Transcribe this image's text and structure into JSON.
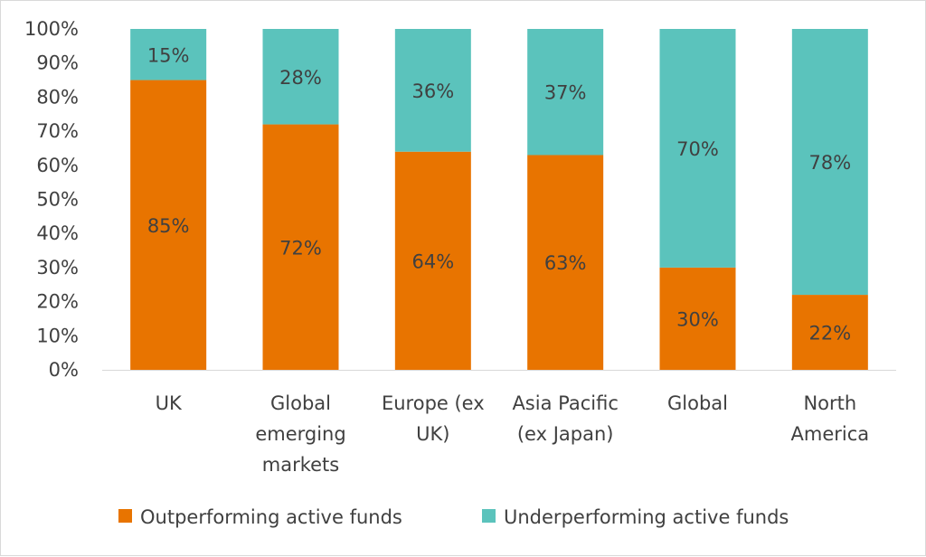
{
  "chart_data": {
    "type": "bar",
    "stacked": true,
    "categories": [
      "UK",
      "Global emerging markets",
      "Europe (ex UK)",
      "Asia Pacific (ex Japan)",
      "Global",
      "North America"
    ],
    "category_lines": [
      [
        "UK"
      ],
      [
        "Global",
        "emerging",
        "markets"
      ],
      [
        "Europe (ex",
        "UK)"
      ],
      [
        "Asia Pacific",
        "(ex Japan)"
      ],
      [
        "Global"
      ],
      [
        "North",
        "America"
      ]
    ],
    "series": [
      {
        "name": "Outperforming active funds",
        "color": "#E87400",
        "values": [
          85,
          72,
          64,
          63,
          30,
          22
        ],
        "labels": [
          "85%",
          "72%",
          "64%",
          "63%",
          "30%",
          "22%"
        ]
      },
      {
        "name": "Underperforming active funds",
        "color": "#5BC3BC",
        "values": [
          15,
          28,
          36,
          37,
          70,
          78
        ],
        "labels": [
          "15%",
          "28%",
          "36%",
          "37%",
          "70%",
          "78%"
        ]
      }
    ],
    "ylim": [
      0,
      100
    ],
    "yticks": [
      0,
      10,
      20,
      30,
      40,
      50,
      60,
      70,
      80,
      90,
      100
    ],
    "ytick_labels": [
      "0%",
      "10%",
      "20%",
      "30%",
      "40%",
      "50%",
      "60%",
      "70%",
      "80%",
      "90%",
      "100%"
    ],
    "grid": false,
    "legend_position": "bottom",
    "title": "",
    "xlabel": "",
    "ylabel": ""
  }
}
